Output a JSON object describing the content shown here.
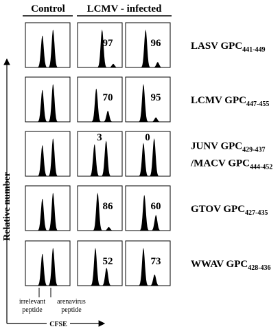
{
  "columns": {
    "control": "Control",
    "infected": "LCMV - infected"
  },
  "rows": [
    {
      "label": [
        {
          "text": "LASV GPC",
          "sub": "441-449"
        }
      ],
      "values": [
        97,
        96
      ]
    },
    {
      "label": [
        {
          "text": "LCMV GPC",
          "sub": "447-455"
        }
      ],
      "values": [
        70,
        95
      ]
    },
    {
      "label": [
        {
          "text": "JUNV GPC",
          "sub": "429-437"
        },
        {
          "text": "/MACV GPC",
          "sub": "444-452"
        }
      ],
      "values": [
        3,
        0
      ]
    },
    {
      "label": [
        {
          "text": "GTOV GPC",
          "sub": "427-435"
        }
      ],
      "values": [
        86,
        60
      ]
    },
    {
      "label": [
        {
          "text": "WWAV GPC",
          "sub": "428-436"
        }
      ],
      "values": [
        52,
        73
      ]
    }
  ],
  "y_axis": "Relative number",
  "x_axis": "CFSE",
  "annotations": {
    "left": [
      "irrelevant",
      "peptide"
    ],
    "right": [
      "arenavirus",
      "peptide"
    ]
  }
}
